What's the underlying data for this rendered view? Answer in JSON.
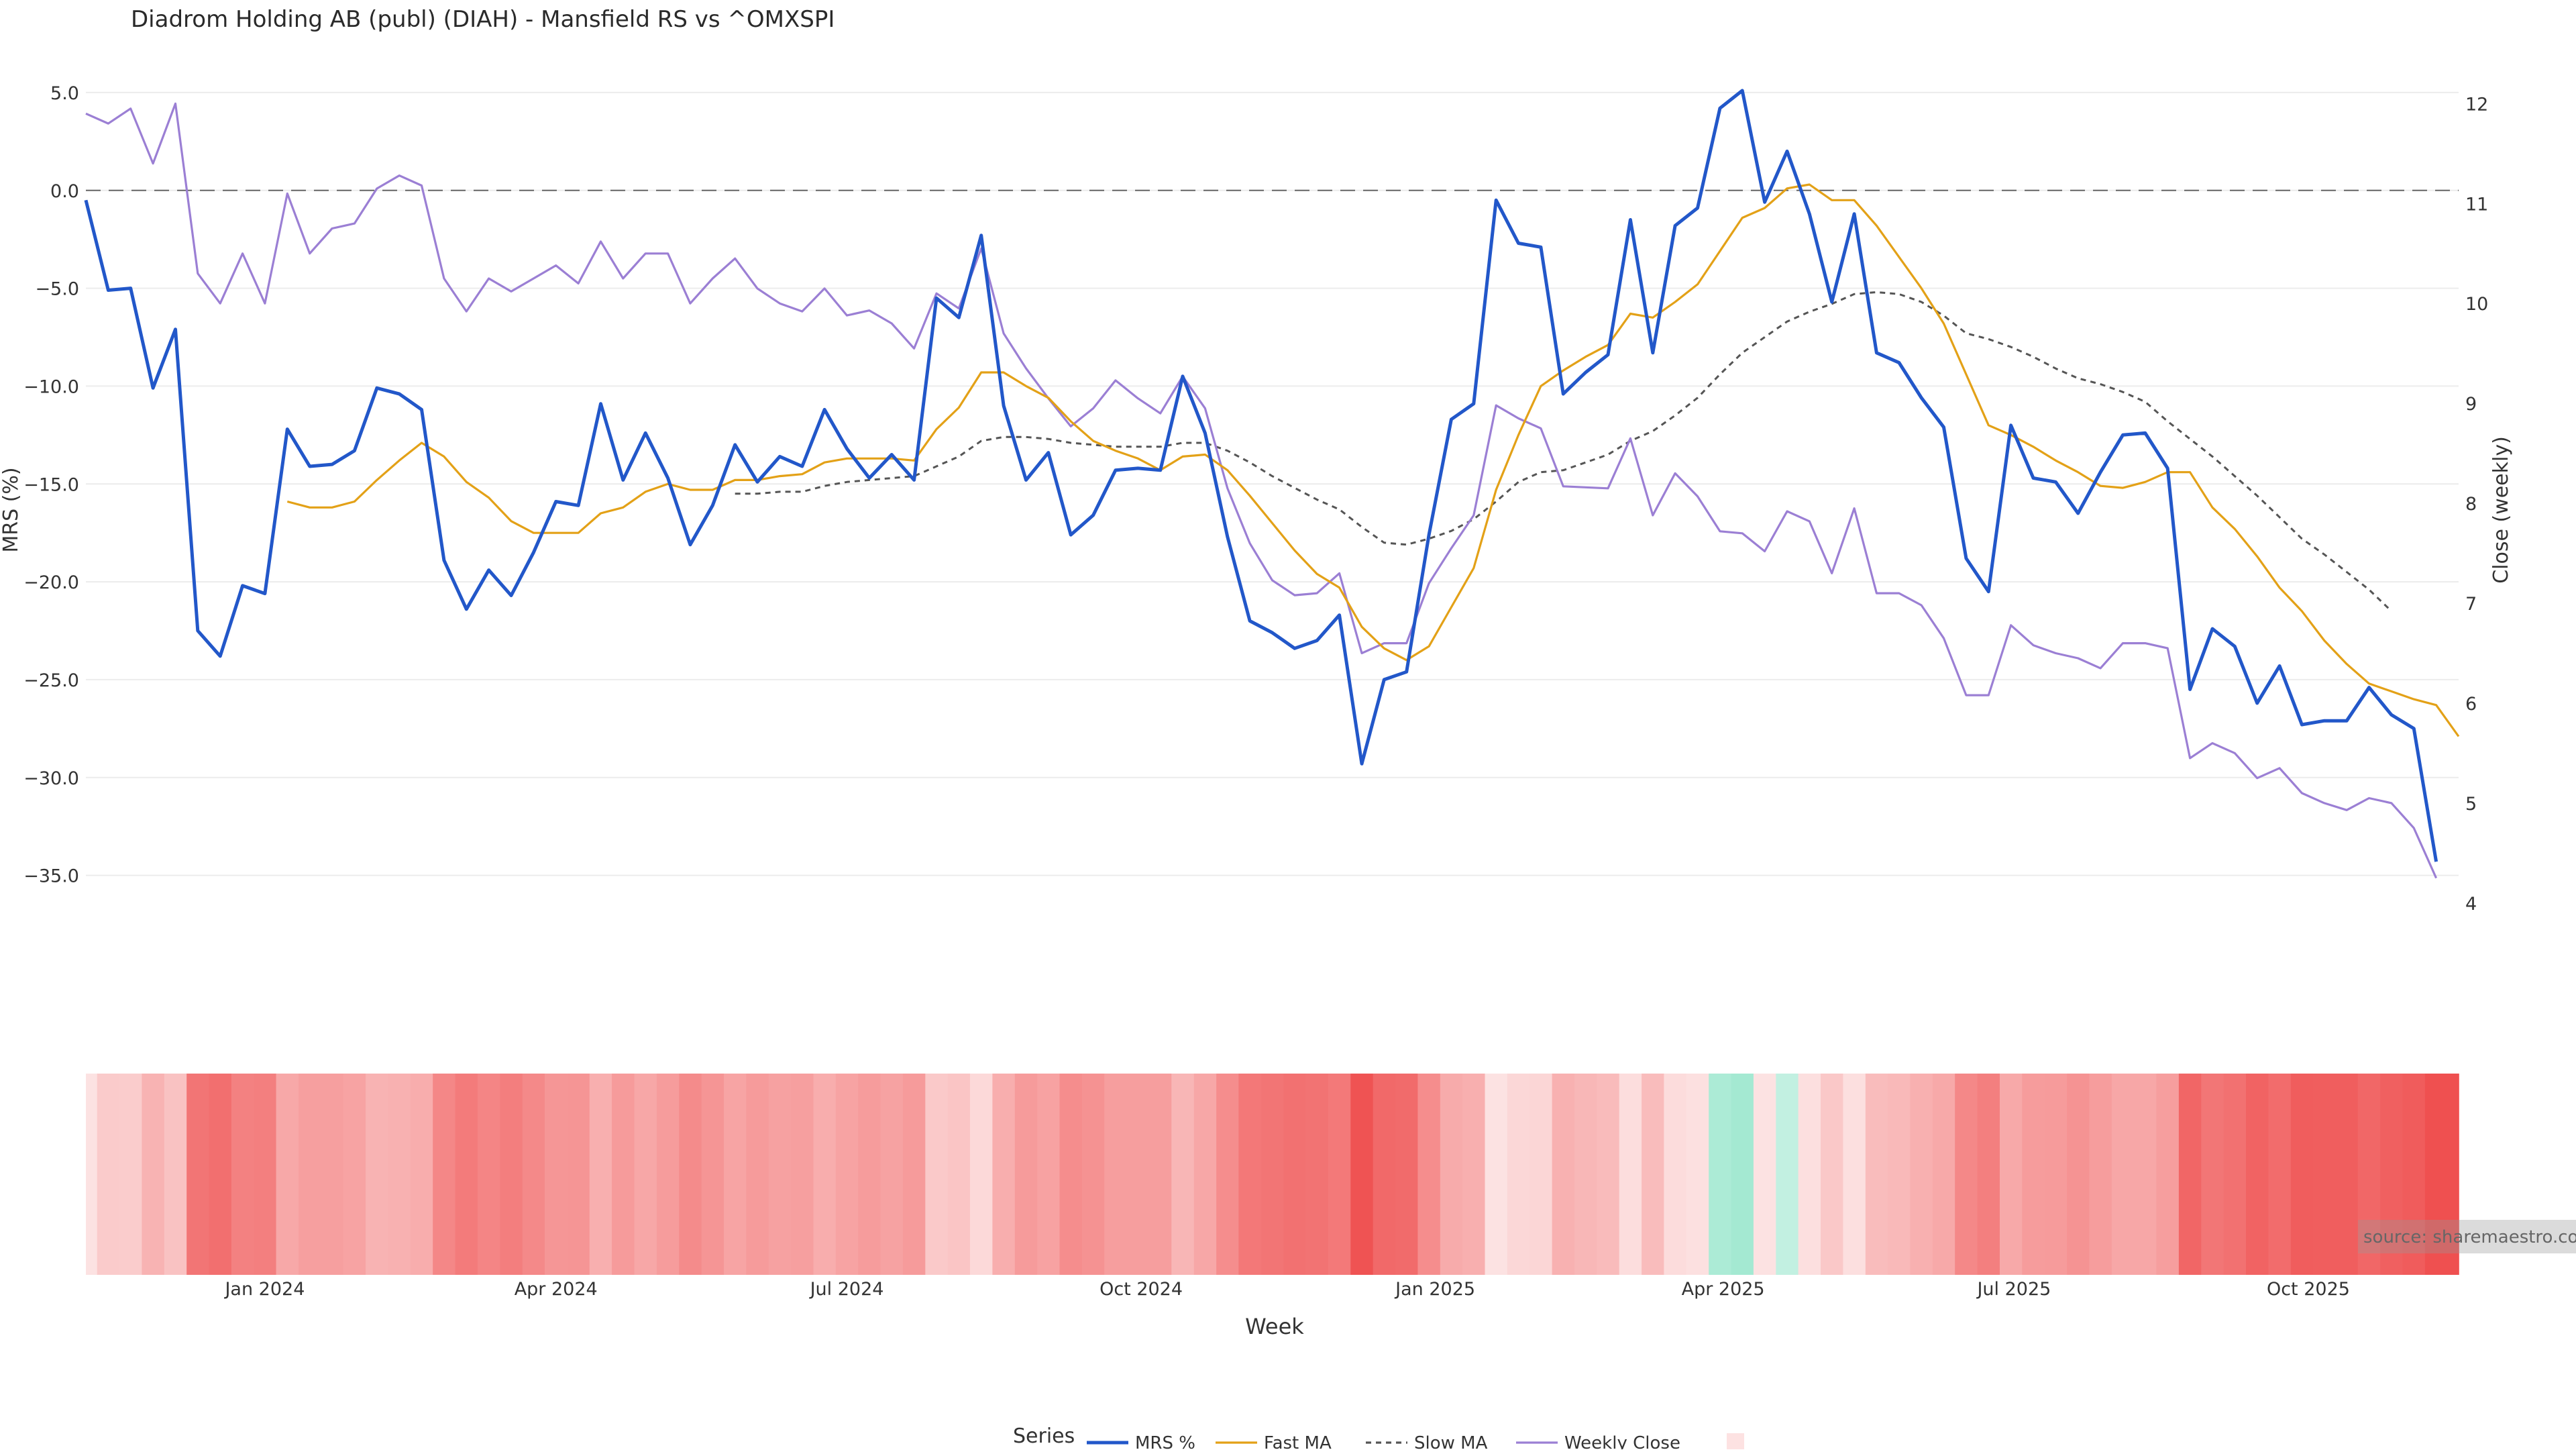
{
  "chart_data": {
    "type": "line",
    "title": "Diadrom Holding AB (publ) (DIAH) - Mansfield RS vs ^OMXSPI",
    "xlabel": "Week",
    "ylabel_left": "MRS (%)",
    "ylabel_right": "Close (weekly)",
    "x_range": [
      "2023-11-06",
      "2025-11-17"
    ],
    "y_left_range": [
      -40.5,
      7.5
    ],
    "y_right_range": [
      3.2,
      12.6
    ],
    "y_left_ticks": [
      5,
      0,
      -5,
      -10,
      -15,
      -20,
      -25,
      -30,
      -35
    ],
    "y_left_tick_labels": [
      "5.0",
      "0.0",
      "−5.0",
      "−10.0",
      "−15.0",
      "−20.0",
      "−25.0",
      "−30.0",
      "−35.0"
    ],
    "y_right_ticks": [
      12,
      11,
      10,
      9,
      8,
      7,
      6,
      5,
      4
    ],
    "y_right_tick_labels": [
      "12",
      "11",
      "10",
      "9",
      "8",
      "7",
      "6",
      "5",
      "4"
    ],
    "x_ticks": [
      {
        "date": "2024-01-01",
        "label": "Jan 2024"
      },
      {
        "date": "2024-04-01",
        "label": "Apr 2024"
      },
      {
        "date": "2024-07-01",
        "label": "Jul 2024"
      },
      {
        "date": "2024-10-01",
        "label": "Oct 2024"
      },
      {
        "date": "2025-01-01",
        "label": "Jan 2025"
      },
      {
        "date": "2025-04-01",
        "label": "Apr 2025"
      },
      {
        "date": "2025-07-01",
        "label": "Jul 2025"
      },
      {
        "date": "2025-10-01",
        "label": "Oct 2025"
      }
    ],
    "zero_line": 0,
    "grid": true,
    "week_start": "2023-11-06",
    "series": [
      {
        "name": "MRS %",
        "axis": "left",
        "color": "#2257c9",
        "style": "solid",
        "values": [
          -0.5,
          -5.1,
          -5.0,
          -10.1,
          -7.1,
          -22.5,
          -23.8,
          -20.2,
          -20.6,
          -12.2,
          -14.1,
          -14.0,
          -13.3,
          -10.1,
          -10.4,
          -11.2,
          -18.9,
          -21.4,
          -19.4,
          -20.7,
          -18.5,
          -15.9,
          -16.1,
          -10.9,
          -14.8,
          -12.4,
          -14.7,
          -18.1,
          -16.1,
          -13.0,
          -14.9,
          -13.6,
          -14.1,
          -11.2,
          -13.2,
          -14.7,
          -13.5,
          -14.8,
          -5.5,
          -6.5,
          -2.3,
          -11.0,
          -14.8,
          -13.4,
          -17.6,
          -16.6,
          -14.3,
          -14.2,
          -14.3,
          -9.5,
          -12.4,
          -17.7,
          -22.0,
          -22.6,
          -23.4,
          -23.0,
          -21.7,
          -29.3,
          -25.0,
          -24.6,
          -17.6,
          -11.7,
          -10.9,
          -0.5,
          -2.7,
          -2.9,
          -10.4,
          -9.3,
          -8.4,
          -1.5,
          -8.3,
          -1.8,
          -0.9,
          4.2,
          5.1,
          -0.6,
          2.0,
          -1.2,
          -5.7,
          -1.2,
          -8.3,
          -8.8,
          -10.6,
          -12.1,
          -18.8,
          -20.5,
          -12.0,
          -14.7,
          -14.9,
          -16.5,
          -14.4,
          -12.5,
          -12.4,
          -14.2,
          -25.5,
          -22.4,
          -23.3,
          -26.2,
          -24.3,
          -27.3,
          -27.1,
          -27.1,
          -25.4,
          -26.8,
          -27.5,
          -34.3
        ]
      },
      {
        "name": "Fast MA",
        "axis": "left",
        "color": "#e3a117",
        "style": "solid",
        "values": [
          null,
          null,
          null,
          null,
          null,
          null,
          null,
          null,
          null,
          -15.9,
          -16.2,
          -16.2,
          -15.9,
          -14.8,
          -13.8,
          -12.9,
          -13.6,
          -14.9,
          -15.7,
          -16.9,
          -17.5,
          -17.5,
          -17.5,
          -16.5,
          -16.2,
          -15.4,
          -15.0,
          -15.3,
          -15.3,
          -14.8,
          -14.8,
          -14.6,
          -14.5,
          -13.9,
          -13.7,
          -13.7,
          -13.7,
          -13.8,
          -12.2,
          -11.1,
          -9.3,
          -9.3,
          -10.0,
          -10.6,
          -11.8,
          -12.8,
          -13.3,
          -13.7,
          -14.3,
          -13.6,
          -13.5,
          -14.3,
          -15.6,
          -17.0,
          -18.4,
          -19.6,
          -20.3,
          -22.3,
          -23.4,
          -24.0,
          -23.3,
          -21.3,
          -19.3,
          -15.3,
          -12.5,
          -10.0,
          -9.2,
          -8.5,
          -7.9,
          -6.3,
          -6.5,
          -5.7,
          -4.8,
          -3.1,
          -1.4,
          -0.9,
          0.1,
          0.3,
          -0.5,
          -0.5,
          -1.8,
          -3.4,
          -5.0,
          -6.8,
          -9.4,
          -12.0,
          -12.5,
          -13.1,
          -13.8,
          -14.4,
          -15.1,
          -15.2,
          -14.9,
          -14.4,
          -14.4,
          -16.2,
          -17.3,
          -18.7,
          -20.3,
          -21.5,
          -23.0,
          -24.2,
          -25.2,
          -25.6,
          -26.0,
          -26.3,
          -27.9
        ]
      },
      {
        "name": "Slow MA",
        "axis": "left",
        "color": "#555555",
        "style": "dashed",
        "values": [
          null,
          null,
          null,
          null,
          null,
          null,
          null,
          null,
          null,
          null,
          null,
          null,
          null,
          null,
          null,
          null,
          null,
          null,
          null,
          null,
          null,
          null,
          null,
          null,
          null,
          null,
          null,
          null,
          null,
          -15.5,
          -15.5,
          -15.4,
          -15.4,
          -15.1,
          -14.9,
          -14.8,
          -14.7,
          -14.6,
          -14.1,
          -13.6,
          -12.8,
          -12.6,
          -12.6,
          -12.7,
          -12.9,
          -13.0,
          -13.1,
          -13.1,
          -13.1,
          -12.9,
          -12.9,
          -13.3,
          -13.9,
          -14.6,
          -15.2,
          -15.8,
          -16.3,
          -17.2,
          -18.0,
          -18.1,
          -17.8,
          -17.4,
          -16.8,
          -15.9,
          -14.9,
          -14.4,
          -14.3,
          -13.9,
          -13.5,
          -12.8,
          -12.3,
          -11.5,
          -10.6,
          -9.4,
          -8.3,
          -7.5,
          -6.7,
          -6.2,
          -5.8,
          -5.3,
          -5.2,
          -5.3,
          -5.7,
          -6.4,
          -7.3,
          -7.6,
          -8.0,
          -8.5,
          -9.1,
          -9.6,
          -9.9,
          -10.3,
          -10.8,
          -11.8,
          -12.7,
          -13.6,
          -14.6,
          -15.6,
          -16.7,
          -17.8,
          -18.6,
          -19.5,
          -20.4,
          -21.5
        ]
      },
      {
        "name": "Weekly Close",
        "axis": "right",
        "color": "#9b7fd4",
        "style": "solid",
        "values": [
          11.9,
          11.8,
          11.95,
          11.4,
          12.0,
          10.3,
          10.0,
          10.5,
          10.0,
          11.1,
          10.5,
          10.75,
          10.8,
          11.15,
          11.28,
          11.18,
          10.25,
          9.92,
          10.25,
          10.12,
          10.25,
          10.38,
          10.2,
          10.62,
          10.25,
          10.5,
          10.5,
          10.0,
          10.25,
          10.45,
          10.15,
          10.0,
          9.92,
          10.15,
          9.88,
          9.93,
          9.8,
          9.55,
          10.1,
          9.95,
          10.55,
          9.7,
          9.35,
          9.05,
          8.77,
          8.95,
          9.23,
          9.05,
          8.9,
          9.27,
          8.95,
          8.15,
          7.6,
          7.23,
          7.08,
          7.1,
          7.3,
          6.5,
          6.6,
          6.6,
          7.2,
          7.55,
          7.88,
          8.98,
          8.85,
          8.75,
          8.17,
          8.16,
          8.15,
          8.65,
          7.88,
          8.3,
          8.07,
          7.72,
          7.7,
          7.52,
          7.92,
          7.82,
          7.3,
          7.95,
          7.1,
          7.1,
          6.98,
          6.65,
          6.08,
          6.08,
          6.78,
          6.58,
          6.5,
          6.45,
          6.35,
          6.6,
          6.6,
          6.55,
          5.45,
          5.6,
          5.5,
          5.25,
          5.35,
          5.1,
          5.0,
          4.93,
          5.05,
          5.0,
          4.75,
          4.25
        ]
      }
    ],
    "heatmap_strip": {
      "values": [
        -0.5,
        -5.1,
        -5.0,
        -10.1,
        -7.1,
        -22.5,
        -23.8,
        -20.2,
        -20.6,
        -12.2,
        -14.1,
        -14.0,
        -13.3,
        -10.1,
        -10.4,
        -11.2,
        -18.9,
        -21.4,
        -19.4,
        -20.7,
        -18.5,
        -15.9,
        -16.1,
        -10.9,
        -14.8,
        -12.4,
        -14.7,
        -18.1,
        -16.1,
        -13.0,
        -14.9,
        -13.6,
        -14.1,
        -11.2,
        -13.2,
        -14.7,
        -13.5,
        -14.8,
        -5.5,
        -6.5,
        -2.3,
        -11.0,
        -14.8,
        -13.4,
        -17.6,
        -16.6,
        -14.3,
        -14.2,
        -14.3,
        -9.5,
        -12.4,
        -17.7,
        -22.0,
        -22.6,
        -23.4,
        -23.0,
        -21.7,
        -29.3,
        -25.0,
        -24.6,
        -17.6,
        -11.7,
        -10.9,
        -0.5,
        -2.7,
        -2.9,
        -10.4,
        -9.3,
        -8.4,
        -1.5,
        -8.3,
        -1.8,
        -0.9,
        4.2,
        5.1,
        -0.6,
        2.0,
        -1.2,
        -5.7,
        -1.2,
        -8.3,
        -8.8,
        -10.6,
        -12.1,
        -18.8,
        -20.5,
        -12.0,
        -14.7,
        -14.9,
        -16.5,
        -14.4,
        -12.5,
        -12.4,
        -14.2,
        -25.5,
        -22.4,
        -23.3,
        -26.2,
        -24.3,
        -27.3,
        -27.1,
        -27.1,
        -25.4,
        -26.8,
        -27.5,
        -34.3
      ],
      "negative_color": "#ef5050",
      "positive_color": "#3fd1a0"
    },
    "legend": {
      "title": "Series",
      "placement": "bottom-center",
      "items": [
        "MRS %",
        "Fast MA",
        "Slow MA",
        "Weekly Close"
      ]
    },
    "source_text": "source: sharemaestro.com"
  }
}
